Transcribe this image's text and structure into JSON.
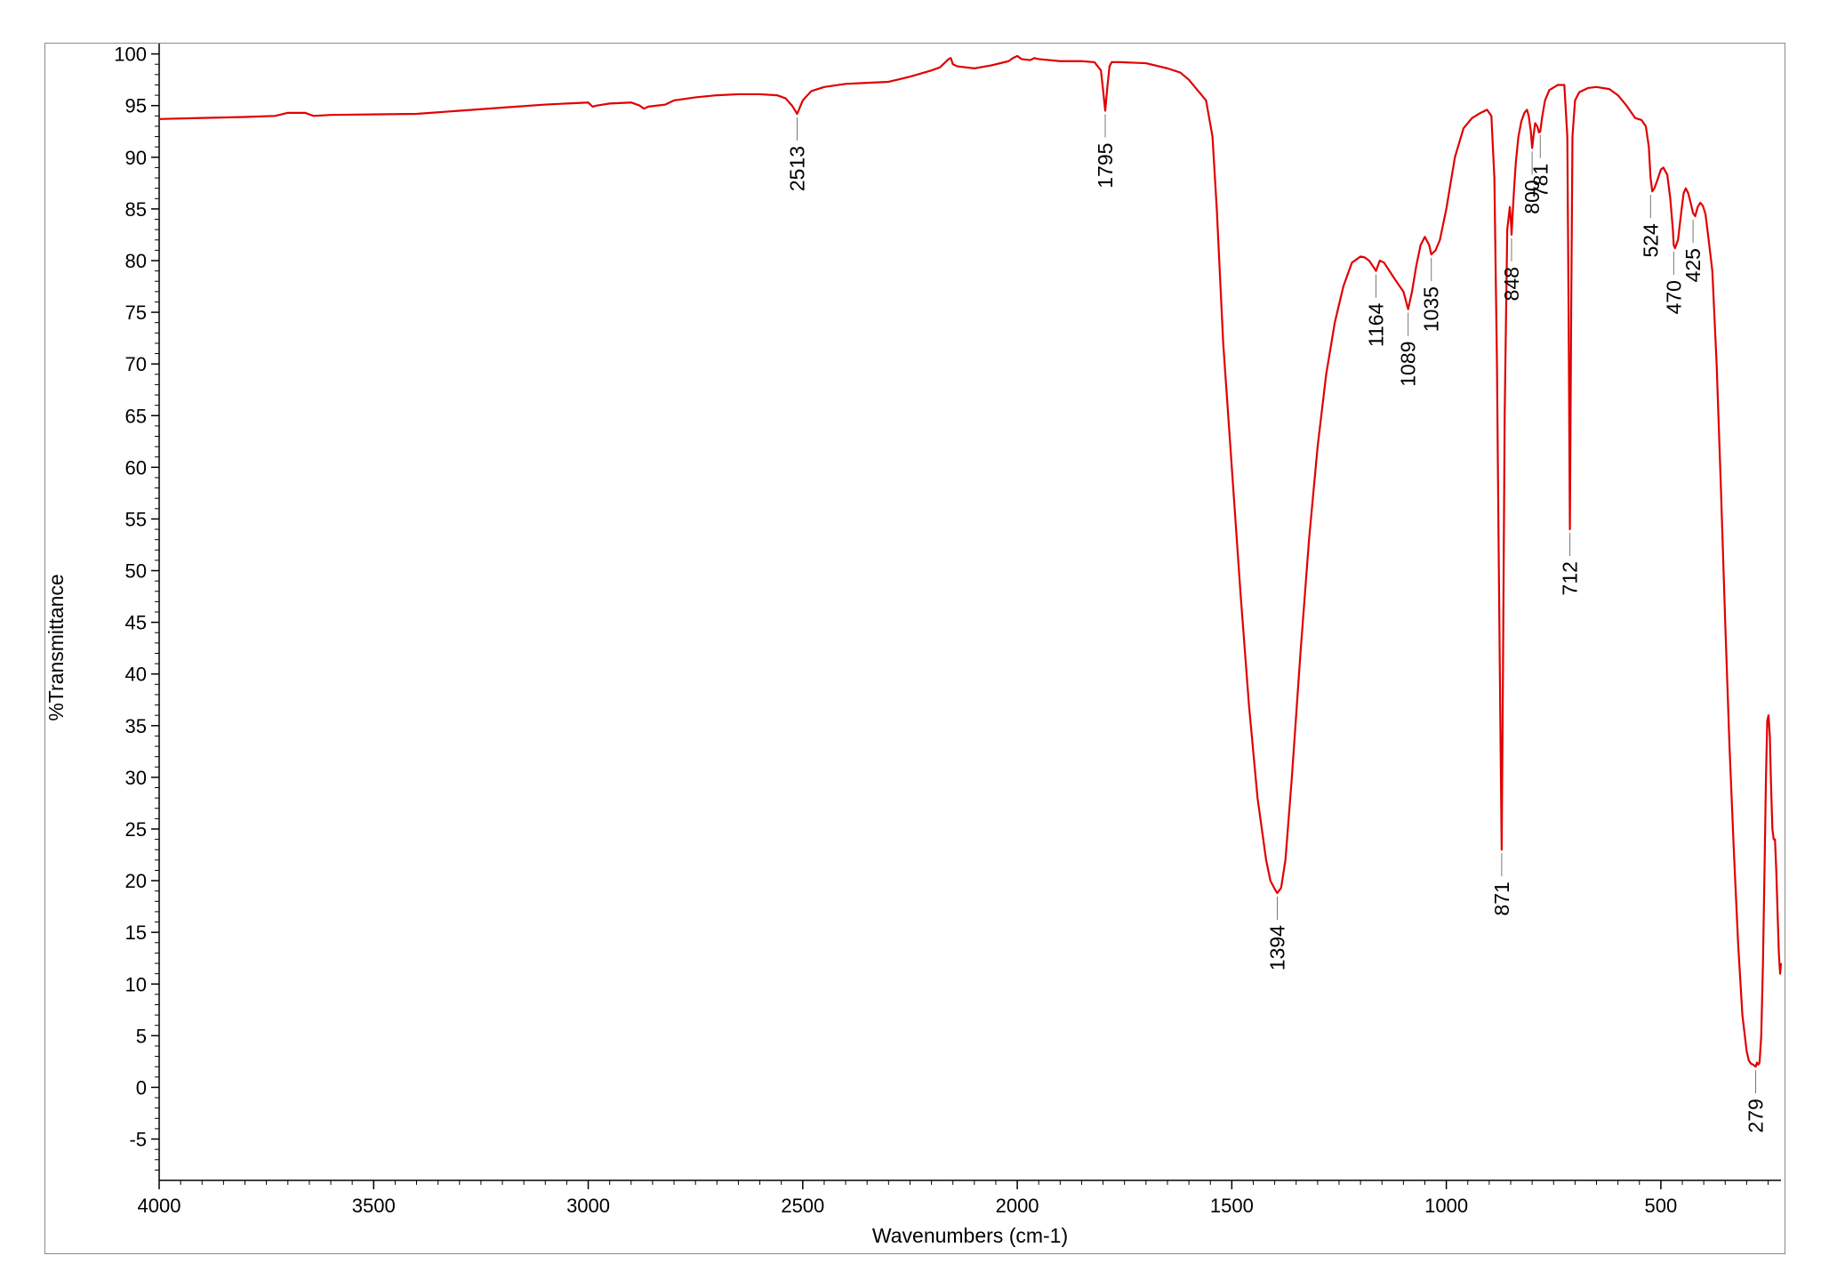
{
  "chart_data": {
    "type": "line",
    "title": "",
    "xlabel": "Wavenumbers (cm-1)",
    "ylabel": "%Transmittance",
    "xlim": [
      4000,
      220
    ],
    "ylim": [
      -9,
      101
    ],
    "x_reversed": true,
    "grid": false,
    "line_color": "#e00000",
    "x_ticks": [
      4000,
      3500,
      3000,
      2500,
      2000,
      1500,
      1000,
      500
    ],
    "x_tick_labels": [
      "4000",
      "3500",
      "3000",
      "2500",
      "2000",
      "1500",
      "1000",
      "500"
    ],
    "y_ticks": [
      -5,
      0,
      5,
      10,
      15,
      20,
      25,
      30,
      35,
      40,
      45,
      50,
      55,
      60,
      65,
      70,
      75,
      80,
      85,
      90,
      95,
      100
    ],
    "y_tick_labels": [
      "-5",
      "0",
      "5",
      "10",
      "15",
      "20",
      "25",
      "30",
      "35",
      "40",
      "45",
      "50",
      "55",
      "60",
      "65",
      "70",
      "75",
      "80",
      "85",
      "90",
      "95",
      "100"
    ],
    "peak_labels": [
      {
        "x": 2513,
        "y": 94.2,
        "label": "2513"
      },
      {
        "x": 1795,
        "y": 94.5,
        "label": "1795"
      },
      {
        "x": 1394,
        "y": 18.8,
        "label": "1394"
      },
      {
        "x": 1164,
        "y": 79.0,
        "label": "1164"
      },
      {
        "x": 1089,
        "y": 75.3,
        "label": "1089"
      },
      {
        "x": 1035,
        "y": 80.6,
        "label": "1035"
      },
      {
        "x": 871,
        "y": 23.0,
        "label": "871"
      },
      {
        "x": 848,
        "y": 82.5,
        "label": "848"
      },
      {
        "x": 800,
        "y": 90.9,
        "label": "800"
      },
      {
        "x": 781,
        "y": 92.5,
        "label": "781"
      },
      {
        "x": 712,
        "y": 54.0,
        "label": "712"
      },
      {
        "x": 524,
        "y": 86.7,
        "label": "524"
      },
      {
        "x": 470,
        "y": 81.2,
        "label": "470"
      },
      {
        "x": 425,
        "y": 84.3,
        "label": "425"
      },
      {
        "x": 279,
        "y": 2.0,
        "label": "279"
      }
    ],
    "series": [
      {
        "x": [
          4000,
          3900,
          3800,
          3730,
          3700,
          3660,
          3640,
          3600,
          3400,
          3300,
          3200,
          3100,
          3000,
          2990,
          2980,
          2950,
          2900,
          2880,
          2870,
          2860,
          2820,
          2800,
          2750,
          2700,
          2650,
          2600,
          2560,
          2540,
          2525,
          2513,
          2500,
          2480,
          2450,
          2400,
          2350,
          2300,
          2280,
          2250,
          2200,
          2180,
          2160,
          2155,
          2150,
          2140,
          2100,
          2060,
          2020,
          2010,
          2000,
          1990,
          1970,
          1960,
          1950,
          1900,
          1850,
          1820,
          1805,
          1800,
          1795,
          1790,
          1785,
          1780,
          1760,
          1700,
          1650,
          1620,
          1600,
          1580,
          1560,
          1545,
          1535,
          1520,
          1500,
          1480,
          1460,
          1440,
          1420,
          1410,
          1400,
          1394,
          1385,
          1375,
          1360,
          1340,
          1320,
          1300,
          1280,
          1260,
          1240,
          1220,
          1200,
          1190,
          1180,
          1170,
          1164,
          1155,
          1145,
          1120,
          1100,
          1089,
          1080,
          1070,
          1060,
          1050,
          1040,
          1035,
          1025,
          1015,
          1000,
          990,
          980,
          960,
          940,
          920,
          905,
          895,
          888,
          882,
          878,
          874,
          871,
          868,
          864,
          858,
          852,
          849,
          848,
          845,
          842,
          838,
          832,
          825,
          818,
          812,
          808,
          803,
          800,
          797,
          793,
          788,
          784,
          781,
          777,
          770,
          760,
          740,
          725,
          718,
          715,
          712,
          709,
          706,
          700,
          690,
          670,
          650,
          620,
          600,
          580,
          560,
          545,
          535,
          528,
          524,
          520,
          515,
          508,
          500,
          494,
          485,
          478,
          472,
          470,
          467,
          460,
          453,
          447,
          442,
          436,
          430,
          425,
          420,
          414,
          408,
          402,
          396,
          390,
          380,
          370,
          360,
          350,
          340,
          330,
          320,
          310,
          300,
          295,
          290,
          285,
          282,
          279,
          276,
          273,
          270,
          266,
          262,
          258,
          255,
          252,
          249,
          246,
          243,
          240,
          237,
          234,
          231,
          228,
          225,
          222,
          220
        ],
        "y": [
          93.7,
          93.8,
          93.9,
          94.0,
          94.3,
          94.3,
          94.0,
          94.1,
          94.2,
          94.5,
          94.8,
          95.1,
          95.3,
          94.9,
          95.0,
          95.2,
          95.3,
          95.0,
          94.7,
          94.9,
          95.1,
          95.5,
          95.8,
          96.0,
          96.1,
          96.1,
          96.0,
          95.7,
          95.0,
          94.2,
          95.5,
          96.4,
          96.8,
          97.1,
          97.2,
          97.3,
          97.5,
          97.8,
          98.4,
          98.7,
          99.5,
          99.6,
          99.0,
          98.8,
          98.6,
          98.9,
          99.3,
          99.6,
          99.8,
          99.5,
          99.4,
          99.6,
          99.5,
          99.3,
          99.3,
          99.2,
          98.4,
          96.5,
          94.5,
          96.8,
          98.8,
          99.2,
          99.2,
          99.1,
          98.6,
          98.2,
          97.5,
          96.5,
          95.5,
          92.0,
          85.0,
          72.0,
          60.0,
          48.0,
          37.0,
          28.0,
          22.0,
          20.0,
          19.2,
          18.8,
          19.3,
          22.0,
          30.0,
          42.0,
          53.0,
          62.0,
          69.0,
          74.0,
          77.5,
          79.8,
          80.4,
          80.3,
          80.0,
          79.4,
          79.0,
          80.0,
          79.8,
          78.2,
          77.0,
          75.3,
          77.0,
          79.5,
          81.5,
          82.3,
          81.5,
          80.6,
          81.0,
          82.0,
          85.0,
          87.5,
          90.0,
          92.8,
          93.8,
          94.3,
          94.6,
          94.0,
          88.0,
          70.0,
          52.0,
          35.0,
          23.0,
          40.0,
          65.0,
          83.0,
          85.2,
          83.5,
          82.5,
          84.8,
          87.0,
          89.5,
          92.0,
          93.5,
          94.3,
          94.6,
          94.0,
          92.5,
          90.9,
          92.0,
          93.3,
          93.0,
          92.4,
          92.5,
          93.8,
          95.5,
          96.5,
          97.0,
          97.0,
          92.0,
          75.0,
          54.0,
          75.0,
          92.0,
          95.5,
          96.3,
          96.7,
          96.8,
          96.6,
          96.0,
          95.0,
          93.8,
          93.6,
          93.0,
          91.0,
          88.0,
          86.7,
          87.0,
          87.8,
          88.8,
          89.0,
          88.3,
          86.0,
          83.0,
          81.5,
          81.2,
          82.0,
          84.5,
          86.5,
          87.0,
          86.5,
          85.5,
          84.6,
          84.3,
          85.2,
          85.6,
          85.3,
          84.5,
          82.5,
          79.0,
          70.0,
          58.0,
          45.0,
          33.0,
          23.0,
          14.0,
          7.0,
          3.5,
          2.6,
          2.3,
          2.2,
          2.1,
          2.0,
          2.4,
          2.2,
          2.4,
          5.0,
          12.0,
          22.0,
          30.0,
          35.5,
          36.0,
          34.0,
          29.0,
          25.0,
          24.0,
          24.0,
          21.0,
          17.0,
          13.0,
          11.0,
          12.0
        ]
      }
    ]
  }
}
